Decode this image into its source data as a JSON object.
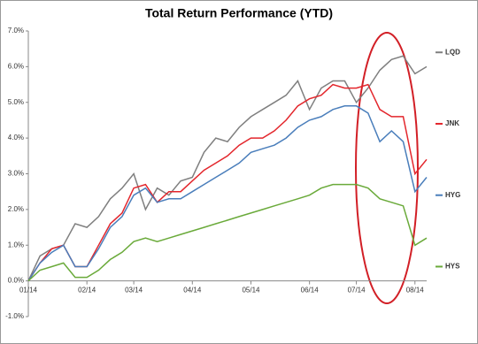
{
  "chart_data": {
    "type": "line",
    "title": "Total Return Performance (YTD)",
    "categories": [
      "01/14",
      null,
      null,
      null,
      null,
      "02/14",
      null,
      null,
      null,
      "03/14",
      null,
      null,
      null,
      null,
      "04/14",
      null,
      null,
      null,
      null,
      "05/14",
      null,
      null,
      null,
      null,
      "06/14",
      null,
      null,
      null,
      "07/14",
      null,
      null,
      null,
      null,
      "08/14",
      null
    ],
    "series": [
      {
        "name": "LQD",
        "color": "#7f7f7f",
        "values": [
          0,
          0.7,
          0.9,
          1.0,
          1.6,
          1.5,
          1.8,
          2.3,
          2.6,
          3.0,
          2.0,
          2.6,
          2.4,
          2.8,
          2.9,
          3.6,
          4.0,
          3.9,
          4.3,
          4.6,
          4.8,
          5.0,
          5.2,
          5.6,
          4.8,
          5.4,
          5.6,
          5.6,
          5.0,
          5.4,
          5.9,
          6.2,
          6.3,
          5.8,
          6.0
        ]
      },
      {
        "name": "JNK",
        "color": "#e3262c",
        "values": [
          0,
          0.5,
          0.9,
          1.0,
          0.4,
          0.4,
          1.0,
          1.6,
          1.9,
          2.6,
          2.7,
          2.2,
          2.5,
          2.5,
          2.8,
          3.1,
          3.3,
          3.5,
          3.8,
          4.0,
          4.0,
          4.2,
          4.5,
          4.9,
          5.1,
          5.2,
          5.5,
          5.4,
          5.4,
          5.5,
          4.8,
          4.6,
          4.6,
          3.0,
          3.4
        ]
      },
      {
        "name": "HYG",
        "color": "#4a7ebb",
        "values": [
          0,
          0.5,
          0.8,
          1.0,
          0.4,
          0.4,
          0.9,
          1.5,
          1.8,
          2.4,
          2.6,
          2.2,
          2.3,
          2.3,
          2.5,
          2.7,
          2.9,
          3.1,
          3.3,
          3.6,
          3.7,
          3.8,
          4.0,
          4.3,
          4.5,
          4.6,
          4.8,
          4.9,
          4.9,
          4.7,
          3.9,
          4.2,
          3.9,
          2.5,
          2.9
        ]
      },
      {
        "name": "HYS",
        "color": "#6aaa3a",
        "values": [
          0,
          0.3,
          0.4,
          0.5,
          0.1,
          0.1,
          0.3,
          0.6,
          0.8,
          1.1,
          1.2,
          1.1,
          1.2,
          1.3,
          1.4,
          1.5,
          1.6,
          1.7,
          1.8,
          1.9,
          2.0,
          2.1,
          2.2,
          2.3,
          2.4,
          2.6,
          2.7,
          2.7,
          2.7,
          2.6,
          2.3,
          2.2,
          2.1,
          1.0,
          1.2
        ]
      }
    ],
    "ylim": [
      -1,
      7
    ],
    "yticks": [
      {
        "value": -1,
        "label": "-1.0%"
      },
      {
        "value": 0,
        "label": "0.0%"
      },
      {
        "value": 1,
        "label": "1.0%"
      },
      {
        "value": 2,
        "label": "2.0%"
      },
      {
        "value": 3,
        "label": "3.0%"
      },
      {
        "value": 4,
        "label": "4.0%"
      },
      {
        "value": 5,
        "label": "5.0%"
      },
      {
        "value": 6,
        "label": "6.0%"
      },
      {
        "value": 7,
        "label": "7.0%"
      }
    ],
    "grid": false,
    "legend": "right"
  }
}
